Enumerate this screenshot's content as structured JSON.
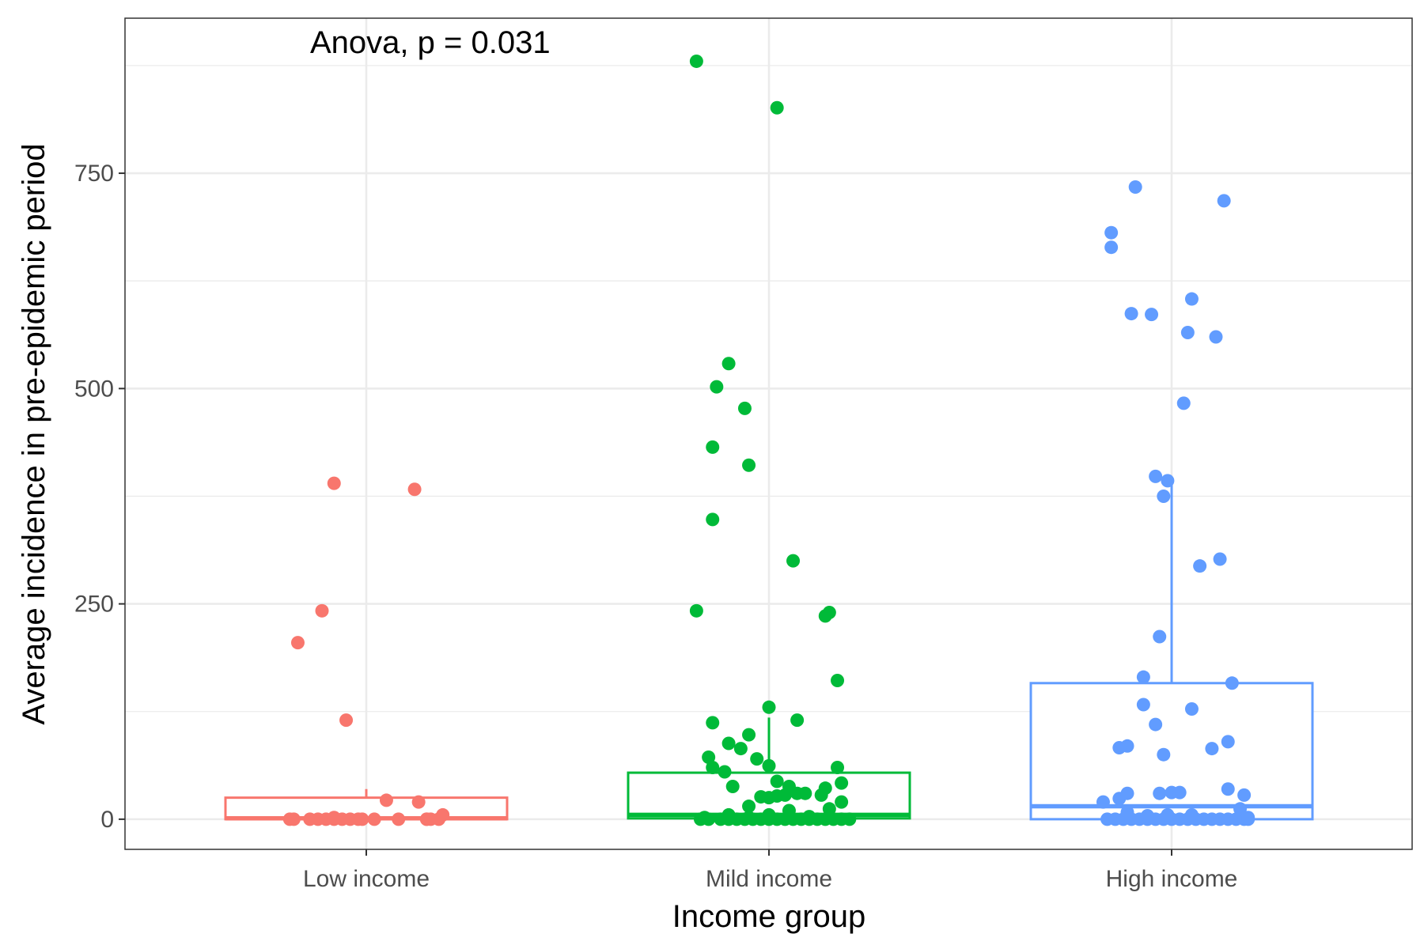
{
  "chart_data": {
    "type": "scatter",
    "subtype": "box-jitter",
    "title": "",
    "xlabel": "Income group",
    "ylabel": "Average incidence in pre-epidemic period",
    "annotation": "Anova, p = 0.031",
    "categories": [
      "Low income",
      "Mild income",
      "High income"
    ],
    "ylim": [
      -35,
      930
    ],
    "y_ticks": [
      0,
      250,
      500,
      750
    ],
    "y_tick_labels": [
      "0",
      "250",
      "500",
      "750"
    ],
    "grid": true,
    "legend": "none",
    "colors": [
      "#F8766D",
      "#00BA38",
      "#619CFF"
    ],
    "boxes": [
      {
        "name": "Low income",
        "min": 0,
        "q1": 0,
        "median": 1,
        "q3": 25,
        "max": 35
      },
      {
        "name": "Mild income",
        "min": 0,
        "q1": 1,
        "median": 5,
        "q3": 54,
        "max": 118
      },
      {
        "name": "High income",
        "min": 0,
        "q1": 0,
        "median": 15,
        "q3": 158,
        "max": 390
      }
    ],
    "series": [
      {
        "category": "Low income",
        "x": [
          -0.19,
          -0.18,
          -0.14,
          -0.12,
          -0.1,
          -0.08,
          -0.06,
          -0.04,
          -0.01,
          -0.02,
          0.02,
          0.08,
          0.15,
          0.15,
          0.16,
          0.18,
          0.19,
          -0.08,
          0.05,
          0.13,
          -0.05,
          -0.17,
          -0.11,
          -0.08,
          0.12
        ],
        "y": [
          0,
          0,
          0,
          0,
          0,
          0,
          0,
          0,
          0,
          0,
          0,
          0,
          0,
          0,
          0,
          0,
          5,
          2,
          22,
          20,
          115,
          205,
          242,
          390,
          383
        ]
      },
      {
        "category": "Mild income",
        "x": [
          -0.17,
          -0.15,
          -0.12,
          -0.1,
          -0.08,
          -0.06,
          -0.04,
          -0.02,
          0.0,
          0.02,
          0.04,
          0.06,
          0.08,
          0.1,
          0.12,
          0.14,
          0.16,
          0.18,
          0.2,
          -0.16,
          -0.1,
          -0.05,
          0.0,
          0.05,
          0.1,
          -0.05,
          0.05,
          0.15,
          -0.15,
          -0.1,
          -0.05,
          0.0,
          0.07,
          0.13,
          0.17,
          -0.14,
          -0.07,
          -0.03,
          0.0,
          0.02,
          0.05,
          0.09,
          0.14,
          0.18,
          -0.14,
          -0.11,
          -0.09,
          -0.02,
          0.0,
          0.02,
          0.04,
          0.07,
          0.18,
          -0.18,
          -0.14,
          -0.05,
          0.06,
          0.14,
          0.17,
          -0.14,
          -0.13,
          -0.06,
          -0.1,
          0.02,
          -0.18,
          0.15
        ],
        "y": [
          0,
          0,
          0,
          0,
          0,
          0,
          0,
          0,
          0,
          0,
          0,
          0,
          0,
          0,
          0,
          0,
          0,
          0,
          0,
          2,
          5,
          2,
          5,
          3,
          3,
          15,
          10,
          12,
          72,
          88,
          98,
          130,
          115,
          28,
          60,
          112,
          82,
          70,
          62,
          44,
          38,
          30,
          36,
          42,
          60,
          55,
          38,
          26,
          25,
          27,
          28,
          30,
          20,
          242,
          348,
          411,
          300,
          236,
          161,
          432,
          502,
          477,
          529,
          826,
          880,
          240
        ]
      },
      {
        "category": "High income",
        "x": [
          -0.16,
          -0.14,
          -0.12,
          -0.1,
          -0.08,
          -0.06,
          -0.04,
          -0.02,
          0.0,
          0.02,
          0.04,
          0.06,
          0.08,
          0.1,
          0.12,
          0.14,
          0.16,
          0.18,
          0.19,
          -0.17,
          -0.13,
          -0.11,
          -0.03,
          0.0,
          0.05,
          0.17,
          -0.11,
          -0.13,
          -0.02,
          0.1,
          0.14,
          -0.07,
          -0.04,
          0.05,
          0.15,
          -0.07,
          0.14,
          0.18,
          -0.03,
          0.07,
          0.12,
          -0.02,
          -0.01,
          -0.04,
          0.04,
          0.11,
          -0.05,
          0.05,
          0.03,
          -0.15,
          -0.09,
          0.13,
          -0.15,
          -0.1,
          0.02,
          -0.11,
          -0.01,
          -0.06,
          0.19
        ],
        "y": [
          0,
          0,
          0,
          0,
          0,
          0,
          0,
          0,
          0,
          0,
          0,
          0,
          0,
          0,
          0,
          0,
          0,
          0,
          0,
          20,
          24,
          30,
          30,
          31,
          5,
          12,
          85,
          83,
          75,
          82,
          90,
          133,
          110,
          128,
          158,
          165,
          35,
          28,
          212,
          294,
          302,
          375,
          393,
          398,
          565,
          560,
          586,
          604,
          483,
          664,
          734,
          718,
          681,
          587,
          31,
          8,
          5,
          4,
          2
        ]
      }
    ]
  }
}
